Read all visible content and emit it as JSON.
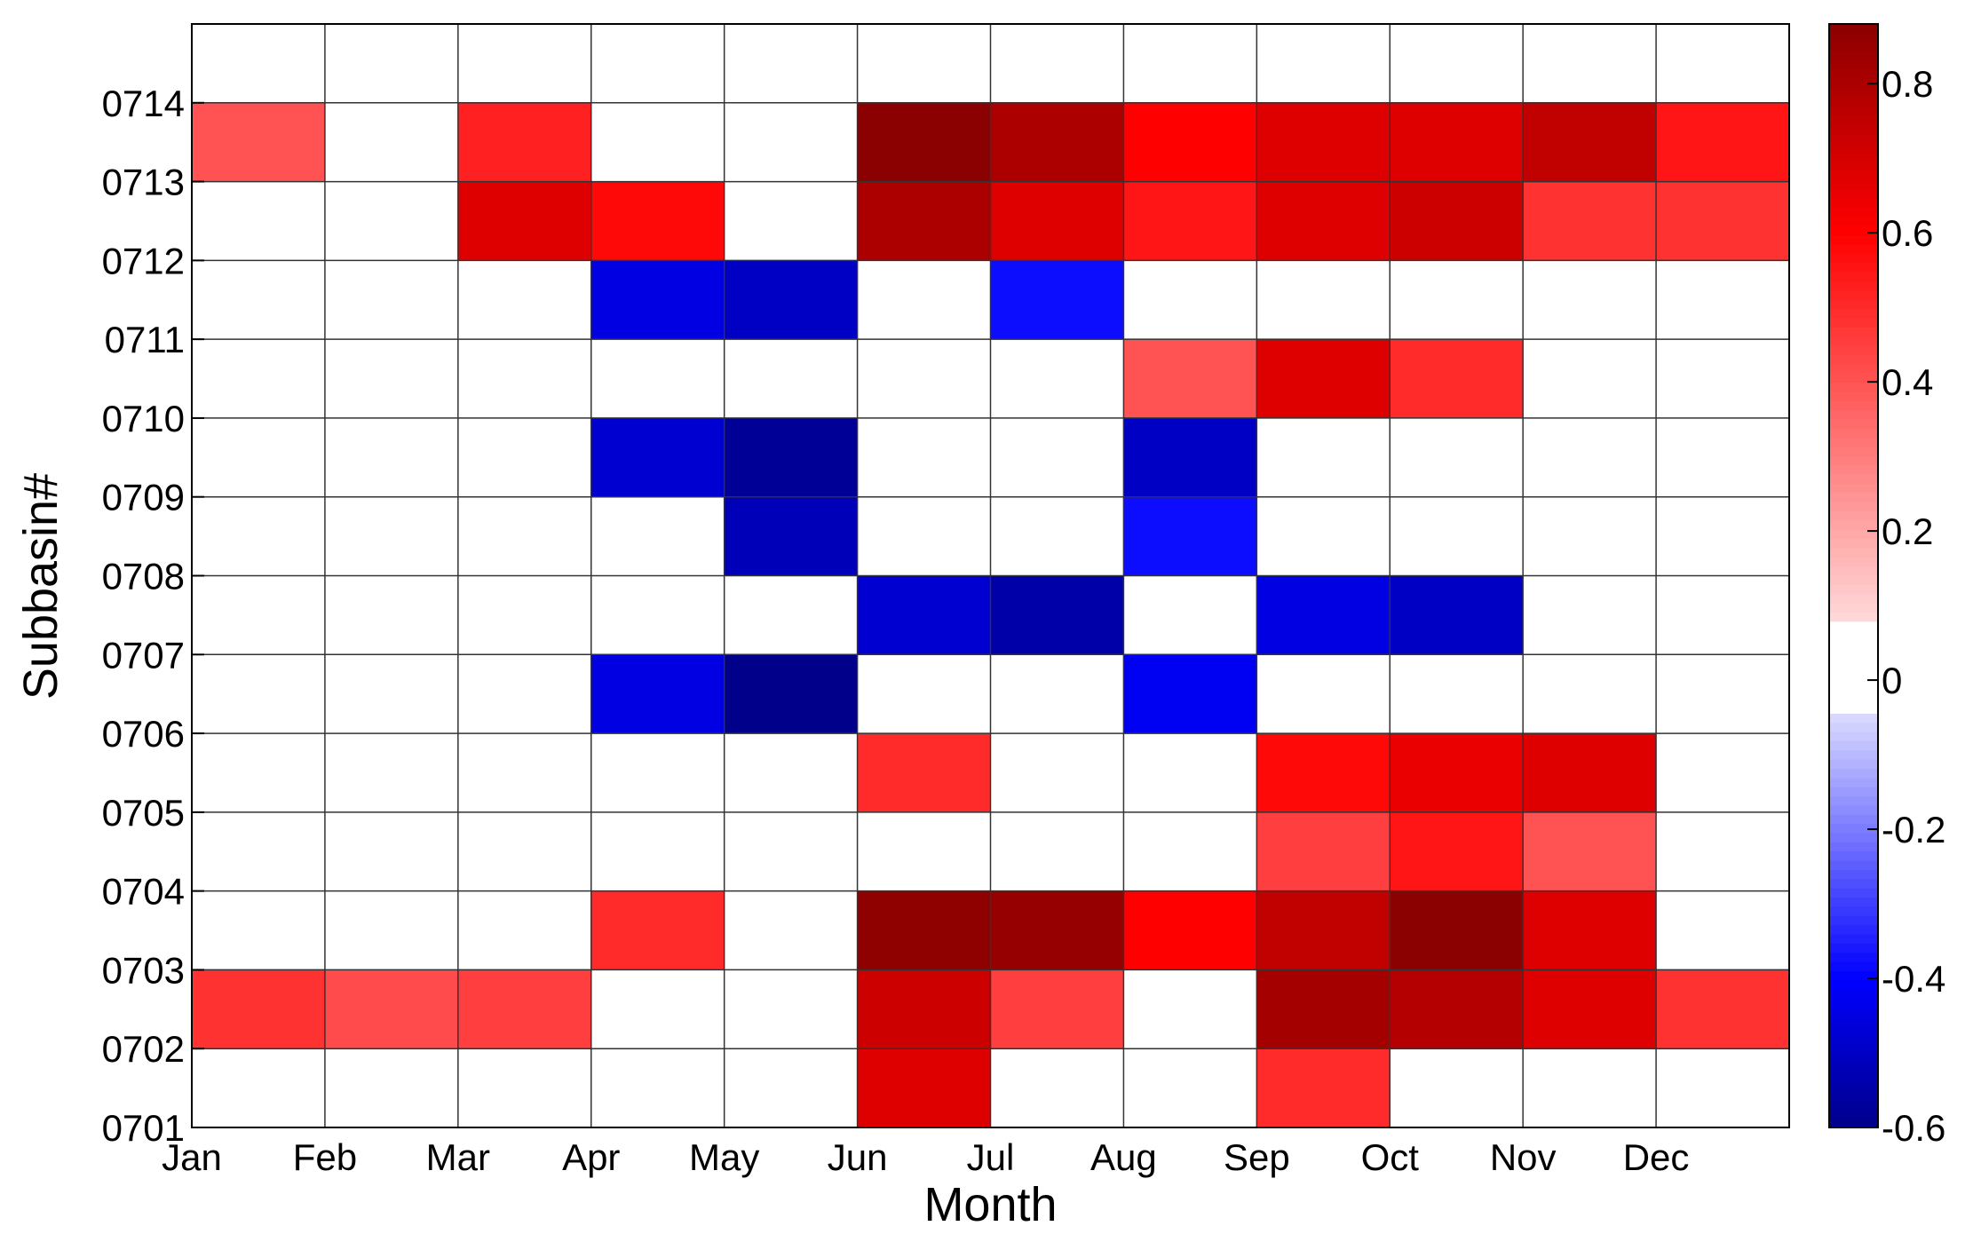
{
  "chart_data": {
    "type": "heatmap",
    "title": "",
    "xlabel": "Month",
    "ylabel": "Subbasin#",
    "x_tick_labels": [
      "Jan",
      "Feb",
      "Mar",
      "Apr",
      "May",
      "Jun",
      "Jul",
      "Aug",
      "Sep",
      "Oct",
      "Nov",
      "Dec"
    ],
    "y_tick_labels": [
      "0701",
      "0702",
      "0703",
      "0704",
      "0705",
      "0706",
      "0707",
      "0708",
      "0709",
      "0710",
      "0711",
      "0712",
      "0713",
      "0714"
    ],
    "rows_bottom_to_top": [
      [
        0,
        0,
        0,
        0,
        0,
        0.68,
        0,
        0,
        0.5,
        0,
        0,
        0
      ],
      [
        0.48,
        0.42,
        0.45,
        0,
        0,
        0.72,
        0.45,
        0,
        0.82,
        0.78,
        0.68,
        0.48
      ],
      [
        0,
        0,
        0,
        0.5,
        0,
        0.87,
        0.85,
        0.6,
        0.75,
        0.88,
        0.68,
        0
      ],
      [
        0,
        0,
        0,
        0,
        0,
        0,
        0,
        0,
        0.45,
        0.55,
        0.4,
        0
      ],
      [
        0,
        0,
        0,
        0,
        0,
        0.5,
        0,
        0,
        0.58,
        0.65,
        0.68,
        0
      ],
      [
        0,
        0,
        0,
        0.45,
        0.6,
        0,
        0,
        0.42,
        0,
        0,
        0,
        0
      ],
      [
        0,
        0,
        0,
        0,
        0,
        0.48,
        0.55,
        0,
        0.45,
        0.5,
        0,
        0
      ],
      [
        0,
        0,
        0,
        0,
        0.52,
        0,
        0,
        0.38,
        0,
        0,
        0,
        0
      ],
      [
        0,
        0,
        0,
        0.48,
        0.58,
        0,
        0,
        0.5,
        0,
        0,
        0,
        0
      ],
      [
        0,
        0,
        0,
        0,
        0,
        0,
        0,
        0.4,
        0.68,
        0.5,
        0,
        0
      ],
      [
        0,
        0,
        0,
        0.45,
        0.5,
        0,
        0.38,
        0,
        0,
        0,
        0,
        0
      ],
      [
        0,
        0,
        0.68,
        0.58,
        0,
        0.8,
        0.68,
        0.55,
        0.68,
        0.72,
        0.48,
        0.48
      ],
      [
        0.4,
        0,
        0.52,
        0,
        0,
        0.88,
        0.8,
        0.6,
        0.68,
        0.68,
        0.75,
        0.55
      ],
      [
        0,
        0,
        0,
        0,
        0,
        0,
        0,
        0,
        0,
        0,
        0,
        0
      ]
    ],
    "row_signs_bottom_to_top": [
      [
        1,
        1,
        1,
        1,
        1,
        1,
        1,
        1,
        1,
        1,
        1,
        1
      ],
      [
        1,
        1,
        1,
        1,
        1,
        1,
        1,
        1,
        1,
        1,
        1,
        1
      ],
      [
        1,
        1,
        1,
        1,
        1,
        1,
        1,
        1,
        1,
        1,
        1,
        1
      ],
      [
        1,
        1,
        1,
        1,
        1,
        1,
        1,
        1,
        1,
        1,
        1,
        1
      ],
      [
        1,
        1,
        1,
        1,
        1,
        1,
        1,
        1,
        1,
        1,
        1,
        1
      ],
      [
        1,
        1,
        1,
        -1,
        -1,
        1,
        1,
        -1,
        1,
        1,
        1,
        1
      ],
      [
        1,
        1,
        1,
        1,
        1,
        -1,
        -1,
        1,
        -1,
        -1,
        1,
        1
      ],
      [
        1,
        1,
        1,
        1,
        -1,
        1,
        1,
        -1,
        1,
        1,
        1,
        1
      ],
      [
        1,
        1,
        1,
        -1,
        -1,
        1,
        1,
        -1,
        1,
        1,
        1,
        1
      ],
      [
        1,
        1,
        1,
        1,
        1,
        1,
        1,
        1,
        1,
        1,
        1,
        1
      ],
      [
        1,
        1,
        1,
        -1,
        -1,
        1,
        -1,
        1,
        1,
        1,
        1,
        1
      ],
      [
        1,
        1,
        1,
        1,
        1,
        1,
        1,
        1,
        1,
        1,
        1,
        1
      ],
      [
        1,
        1,
        1,
        1,
        1,
        1,
        1,
        1,
        1,
        1,
        1,
        1
      ],
      [
        1,
        1,
        1,
        1,
        1,
        1,
        1,
        1,
        1,
        1,
        1,
        1
      ]
    ],
    "colorbar": {
      "min": -0.6,
      "max": 0.88,
      "tick_values": [
        -0.6,
        -0.4,
        -0.2,
        0,
        0.2,
        0.4,
        0.6,
        0.8
      ],
      "tick_labels": [
        "-0.6",
        "-0.4",
        "-0.2",
        "0",
        "0.2",
        "0.4",
        "0.6",
        "0.8"
      ],
      "blank_band": [
        -0.05,
        0.08
      ],
      "colors": {
        "negative_extreme": "#00008b",
        "negative_mid": "#0000ff",
        "zero": "#ffffff",
        "positive_mid": "#ff0000",
        "positive_extreme": "#8b0000"
      }
    },
    "grid": true
  }
}
